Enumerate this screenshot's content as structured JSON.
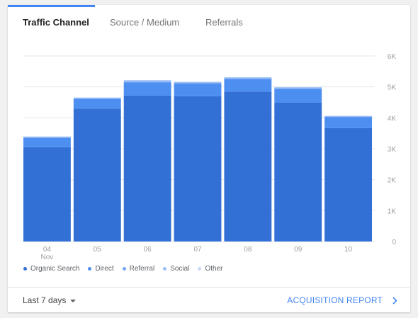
{
  "tabs": [
    {
      "label": "Traffic Channel",
      "active": true
    },
    {
      "label": "Source / Medium",
      "active": false
    },
    {
      "label": "Referrals",
      "active": false
    }
  ],
  "chart_data": {
    "type": "bar",
    "stacked": true,
    "categories": [
      "04\nNov",
      "05",
      "06",
      "07",
      "08",
      "09",
      "10"
    ],
    "series": [
      {
        "name": "Organic Search",
        "color": "#3370d6",
        "values": [
          3050,
          4300,
          4720,
          4700,
          4850,
          4490,
          3670
        ]
      },
      {
        "name": "Direct",
        "color": "#4d8ef1",
        "values": [
          300,
          310,
          420,
          400,
          400,
          440,
          350
        ]
      },
      {
        "name": "Referral",
        "color": "#73a6f4",
        "values": [
          20,
          20,
          30,
          30,
          30,
          30,
          20
        ]
      },
      {
        "name": "Social",
        "color": "#9cbef7",
        "values": [
          25,
          25,
          40,
          30,
          30,
          30,
          20
        ]
      },
      {
        "name": "Other",
        "color": "#c6daf9",
        "values": [
          5,
          5,
          10,
          5,
          5,
          5,
          5
        ]
      }
    ],
    "yticks": [
      "0",
      "1K",
      "2K",
      "3K",
      "4K",
      "5K",
      "6K"
    ],
    "ylim": [
      0,
      6000
    ],
    "grid": true,
    "legend_position": "bottom-left"
  },
  "footer": {
    "date_range": "Last 7 days",
    "report_link": "ACQUISITION REPORT"
  },
  "icons": {
    "dropdown": "caret-down-icon",
    "report": "chevron-right-icon"
  }
}
